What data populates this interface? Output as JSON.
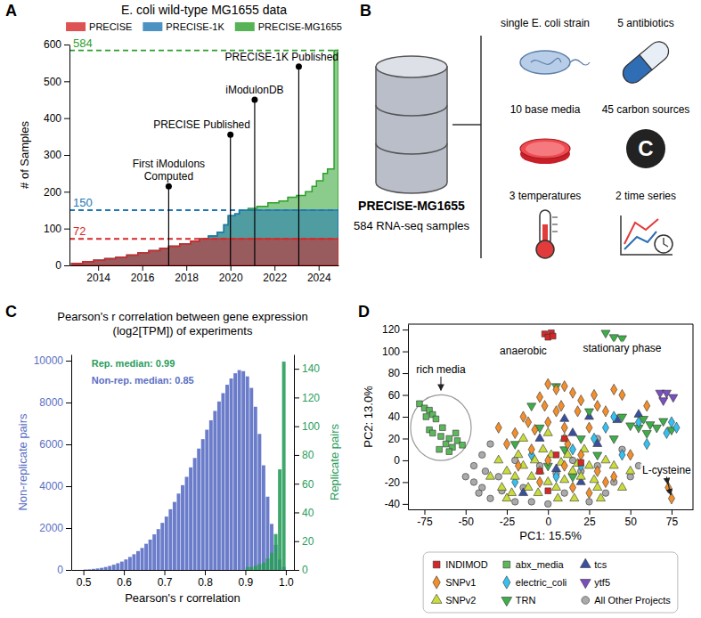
{
  "chart_data": [
    {
      "panel": "A",
      "type": "area",
      "title": "E. coli wild-type MG1655 data",
      "ylabel": "# of Samples",
      "xlim": [
        2012.7,
        2024.9
      ],
      "xticks": [
        2014,
        2016,
        2018,
        2020,
        2022,
        2024
      ],
      "ylim": [
        0,
        600
      ],
      "yticks": [
        0,
        100,
        200,
        300,
        400,
        500,
        600
      ],
      "legend": "top",
      "series": [
        {
          "name": "PRECISE",
          "color": "#d62728",
          "x": [
            2012.8,
            2013.3,
            2013.8,
            2014.3,
            2014.8,
            2015.3,
            2015.8,
            2016.3,
            2016.8,
            2017.2,
            2017.7,
            2018.2,
            2018.6,
            2024.9
          ],
          "values": [
            5,
            10,
            14,
            18,
            22,
            28,
            34,
            40,
            46,
            52,
            58,
            66,
            72,
            72
          ]
        },
        {
          "name": "PRECISE-1K",
          "color": "#1f77b4",
          "x": [
            2012.8,
            2013.3,
            2013.8,
            2014.3,
            2014.8,
            2015.3,
            2015.8,
            2016.3,
            2016.8,
            2017.2,
            2017.7,
            2018.2,
            2018.6,
            2019.0,
            2019.4,
            2019.7,
            2019.9,
            2020.2,
            2020.4,
            2024.9
          ],
          "values": [
            5,
            10,
            14,
            18,
            22,
            28,
            34,
            40,
            46,
            52,
            58,
            66,
            72,
            80,
            90,
            110,
            135,
            140,
            150,
            150
          ]
        },
        {
          "name": "PRECISE-MG1655",
          "color": "#2ca02c",
          "x": [
            2012.8,
            2013.3,
            2013.8,
            2014.3,
            2014.8,
            2015.3,
            2015.8,
            2016.3,
            2016.8,
            2017.2,
            2017.7,
            2018.2,
            2018.6,
            2019.0,
            2019.4,
            2019.7,
            2019.9,
            2020.2,
            2020.4,
            2020.8,
            2021.2,
            2021.7,
            2022.2,
            2022.6,
            2023.0,
            2023.4,
            2023.7,
            2023.9,
            2024.2,
            2024.4,
            2024.7,
            2024.9
          ],
          "values": [
            5,
            10,
            14,
            18,
            22,
            28,
            34,
            40,
            46,
            52,
            58,
            66,
            72,
            80,
            90,
            110,
            135,
            140,
            150,
            155,
            160,
            170,
            175,
            185,
            190,
            200,
            215,
            230,
            250,
            262,
            584,
            584
          ]
        }
      ],
      "reference_lines": [
        {
          "value": 584,
          "color": "#2ca02c"
        },
        {
          "value": 150,
          "color": "#1f77b4"
        },
        {
          "value": 72,
          "color": "#d62728"
        }
      ],
      "annotations": [
        {
          "text": "First iModulons Computed",
          "x": 2017.2,
          "y": 215
        },
        {
          "text": "PRECISE Published",
          "x": 2020.0,
          "y": 355
        },
        {
          "text": "iModulonDB",
          "x": 2021.1,
          "y": 450
        },
        {
          "text": "PRECISE-1K Published",
          "x": 2023.1,
          "y": 540
        }
      ]
    },
    {
      "panel": "C",
      "type": "histogram",
      "title": "Pearson's r correlation between gene expression (log2[TPM]) of experiments",
      "xlabel": "Pearson's r correlation",
      "ylabel": "Non-replicate pairs",
      "y2label": "Replicate pairs",
      "xlim": [
        0.47,
        1.02
      ],
      "xticks": [
        0.5,
        0.6,
        0.7,
        0.8,
        0.9,
        {
          "value": 1,
          "label": "1.0"
        }
      ],
      "ylim": [
        0,
        10300
      ],
      "yticks": [
        0,
        2000,
        4000,
        6000,
        8000,
        10000
      ],
      "y2lim": [
        0,
        150
      ],
      "y2ticks": [
        0,
        20,
        40,
        60,
        80,
        100,
        120,
        140
      ],
      "series": [
        {
          "color": "#5b6fc4",
          "bins": [
            0.5,
            0.51,
            0.52,
            0.53,
            0.54,
            0.55,
            0.56,
            0.57,
            0.58,
            0.59,
            0.6,
            0.61,
            0.62,
            0.63,
            0.64,
            0.65,
            0.66,
            0.67,
            0.68,
            0.69,
            0.7,
            0.71,
            0.72,
            0.73,
            0.74,
            0.75,
            0.76,
            0.77,
            0.78,
            0.79,
            0.8,
            0.81,
            0.82,
            0.83,
            0.84,
            0.85,
            0.86,
            0.87,
            0.88,
            0.89,
            0.9,
            0.91,
            0.92,
            0.93,
            0.94,
            0.95,
            0.96,
            0.97,
            0.98,
            0.99,
            1.0
          ],
          "values": [
            20,
            30,
            50,
            70,
            100,
            140,
            190,
            250,
            320,
            400,
            500,
            620,
            750,
            900,
            1050,
            1250,
            1450,
            1700,
            1950,
            2250,
            2550,
            2900,
            3250,
            3650,
            4050,
            4450,
            4900,
            5350,
            5800,
            6250,
            6700,
            7150,
            7600,
            8050,
            8450,
            8850,
            9150,
            9400,
            9550,
            9500,
            9250,
            8700,
            7800,
            6500,
            5000,
            3500,
            2200,
            1200,
            500,
            150
          ]
        },
        {
          "color": "#2a9d5c",
          "axis": "y2",
          "bins": [
            0.9,
            0.91,
            0.92,
            0.93,
            0.94,
            0.95,
            0.96,
            0.97,
            0.98,
            0.99,
            1.0
          ],
          "values": [
            2,
            2,
            3,
            4,
            5,
            8,
            12,
            25,
            70,
            145
          ]
        }
      ],
      "annotations": [
        {
          "text": "Rep. median: 0.99",
          "x": 0.52,
          "y": 9700,
          "color": "#2a9d5c"
        },
        {
          "text": "Non-rep. median: 0.85",
          "x": 0.52,
          "y": 8900,
          "color": "#5b6fc4"
        }
      ]
    },
    {
      "panel": "D",
      "type": "scatter",
      "xlabel": "PC1: 15.5%",
      "ylabel": "PC2: 13.0%",
      "xlim": [
        -85,
        88
      ],
      "xticks": [
        -75,
        -50,
        -25,
        0,
        25,
        50,
        75
      ],
      "ylim": [
        -45,
        125
      ],
      "yticks": [
        -40,
        -20,
        0,
        20,
        40,
        60,
        80,
        100,
        120
      ],
      "legend": "bottom",
      "series": [
        {
          "name": "INDIMOD",
          "color": "#d62728",
          "marker": "square",
          "x": [
            -2,
            2,
            0,
            3,
            10,
            0,
            -5,
            20,
            5
          ],
          "values": [
            116,
            117,
            113,
            114,
            20,
            -28,
            -10,
            -2,
            5
          ]
        },
        {
          "name": "SNPv1",
          "color": "#f28e2b",
          "marker": "diamond",
          "x": [
            0,
            5,
            10,
            15,
            -5,
            20,
            8,
            18,
            30,
            35,
            45,
            -15,
            -12,
            -8,
            0,
            10,
            25,
            -20,
            -25,
            -10,
            0,
            10,
            20,
            30,
            40,
            -18,
            -5,
            15,
            25,
            35,
            50,
            60,
            -30,
            40,
            73,
            75,
            5,
            -2,
            12,
            28
          ],
          "values": [
            70,
            65,
            68,
            62,
            58,
            55,
            50,
            45,
            50,
            45,
            60,
            40,
            35,
            28,
            35,
            30,
            30,
            25,
            15,
            10,
            0,
            -5,
            5,
            -10,
            -15,
            -5,
            -20,
            -25,
            -30,
            -20,
            5,
            50,
            30,
            65,
            -25,
            -35,
            45,
            50,
            15,
            60
          ]
        },
        {
          "name": "SNPv2",
          "color": "#c9dc3c",
          "marker": "triangle-up",
          "x": [
            -30,
            -25,
            -20,
            -15,
            -10,
            -5,
            0,
            5,
            10,
            15,
            20,
            25,
            30,
            -28,
            -22,
            -12,
            -8,
            2,
            8,
            12,
            18,
            -3,
            -18,
            22,
            35,
            40,
            -15,
            0,
            10,
            28,
            -25,
            -35,
            45,
            50,
            -6,
            6,
            16,
            32
          ],
          "values": [
            0,
            -10,
            -15,
            -5,
            -15,
            -10,
            -20,
            -25,
            -18,
            -10,
            -15,
            -5,
            -25,
            -25,
            -30,
            -25,
            0,
            5,
            -2,
            5,
            -3,
            10,
            5,
            10,
            0,
            -5,
            20,
            25,
            20,
            -18,
            -35,
            -15,
            -25,
            -10,
            -30,
            -35,
            -35,
            -35
          ]
        },
        {
          "name": "abx_media",
          "color": "#5cb85c",
          "marker": "square",
          "x": [
            -78,
            -75,
            -72,
            -70,
            -68,
            -74,
            -72,
            -70,
            -65,
            -60,
            -62,
            -58,
            -66,
            -60,
            -55,
            -52,
            -64,
            -56
          ],
          "values": [
            52,
            48,
            46,
            42,
            38,
            40,
            28,
            25,
            22,
            20,
            15,
            12,
            10,
            8,
            18,
            14,
            30,
            25
          ]
        },
        {
          "name": "electric_coli",
          "color": "#35c0f0",
          "marker": "diamond",
          "x": [
            78,
            75,
            72,
            60,
            40,
            35,
            20,
            5,
            -10,
            -20,
            15,
            45,
            55,
            28
          ],
          "values": [
            30,
            35,
            25,
            15,
            40,
            30,
            -5,
            -15,
            5,
            -20,
            10,
            5,
            35,
            20
          ]
        },
        {
          "name": "TRN",
          "color": "#3fae49",
          "marker": "triangle-down",
          "x": [
            35,
            40,
            45,
            58,
            62,
            66,
            70,
            55,
            60,
            75,
            50,
            20,
            10,
            -5,
            25,
            30,
            0,
            -20,
            15,
            40,
            -10,
            5,
            45
          ],
          "values": [
            117,
            113,
            112,
            38,
            33,
            30,
            36,
            30,
            25,
            28,
            32,
            20,
            10,
            30,
            45,
            5,
            -5,
            15,
            -15,
            20,
            50,
            68,
            40
          ]
        },
        {
          "name": "tcs",
          "color": "#3a4fa0",
          "marker": "triangle-up",
          "x": [
            42,
            25,
            55,
            15,
            -5,
            30,
            5,
            -15,
            20,
            10
          ],
          "values": [
            37,
            40,
            42,
            25,
            20,
            15,
            -8,
            -30,
            -20,
            38
          ]
        },
        {
          "name": "ytf5",
          "color": "#7b4fc0",
          "marker": "triangle-down",
          "x": [
            68,
            72,
            70,
            76
          ],
          "values": [
            62,
            62,
            55,
            58
          ]
        },
        {
          "name": "All Other Projects",
          "color": "#aaaaaa",
          "marker": "circle",
          "x": [
            -40,
            -42,
            -35,
            -38,
            -45,
            -30,
            -28,
            -20,
            -10,
            0,
            10,
            25,
            35,
            40,
            50,
            55,
            45,
            -40,
            -35,
            -45,
            -20,
            -5,
            15,
            30,
            -15,
            5,
            -50,
            20,
            30
          ],
          "values": [
            -25,
            -30,
            -35,
            -10,
            -20,
            -15,
            -28,
            -38,
            -38,
            -40,
            -30,
            -38,
            -30,
            -20,
            -15,
            -5,
            10,
            5,
            15,
            -5,
            0,
            -5,
            0,
            20,
            -25,
            -12,
            -15,
            -10,
            -5
          ]
        }
      ],
      "annotations": [
        {
          "text": "anaerobic",
          "x": -15,
          "y": 97
        },
        {
          "text": "stationary phase",
          "x": 45,
          "y": 100
        },
        {
          "text": "rich media",
          "x": -65,
          "y": 80,
          "arrows": [
            [
              -65,
              61
            ]
          ]
        },
        {
          "text": "L-cysteine",
          "x": 72,
          "y": -12,
          "arrows": [
            [
              73,
              -25
            ],
            [
              75,
              -35
            ]
          ]
        }
      ]
    }
  ],
  "diagram": {
    "panel": "B",
    "database": {
      "title": "PRECISE-MG1655",
      "subtitle": "584 RNA-seq samples"
    },
    "items": [
      "single E. coli strain",
      "10 base media",
      "3 temperatures",
      "5 antibiotics",
      "45 carbon sources",
      "2 time series"
    ],
    "carbon_icon": "C"
  }
}
